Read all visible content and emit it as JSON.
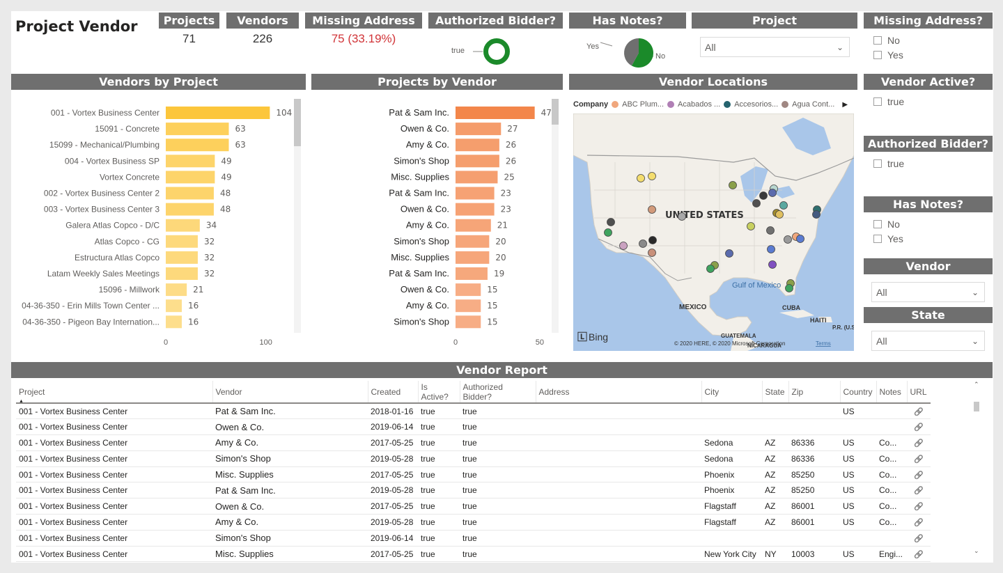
{
  "title": "Project Vendor",
  "kpis": {
    "projects": {
      "label": "Projects",
      "value": "71"
    },
    "vendors": {
      "label": "Vendors",
      "value": "226"
    },
    "missing": {
      "label": "Missing Address",
      "value": "75 (33.19%)"
    },
    "authorized": {
      "label": "Authorized Bidder?",
      "legend": "true"
    },
    "notes": {
      "label": "Has Notes?",
      "yes": "Yes",
      "no": "No",
      "yes_fraction": 0.42
    }
  },
  "filters": {
    "project": {
      "label": "Project",
      "value": "All"
    },
    "missing_address": {
      "label": "Missing Address?",
      "options": [
        "No",
        "Yes"
      ]
    },
    "vendor_active": {
      "label": "Vendor Active?",
      "options": [
        "true"
      ]
    },
    "authorized_bidder": {
      "label": "Authorized Bidder?",
      "options": [
        "true"
      ]
    },
    "has_notes": {
      "label": "Has Notes?",
      "options": [
        "No",
        "Yes"
      ]
    },
    "vendor": {
      "label": "Vendor",
      "value": "All"
    },
    "state": {
      "label": "State",
      "value": "All"
    }
  },
  "colors": {
    "header": "#6f6f6f",
    "bar_projects": "#fcc63b",
    "bar_vendors": "#f3864a",
    "accent_green": "#1b8a2a"
  },
  "chart_data": [
    {
      "type": "bar",
      "title": "Vendors by Project",
      "orientation": "horizontal",
      "categories": [
        "001 - Vortex Business Center",
        "15091 - Concrete",
        "15099 - Mechanical/Plumbing",
        "004 - Vortex Business SP",
        "Vortex Concrete",
        "002 - Vortex Business Center 2",
        "003 - Vortex Business Center 3",
        "Galera Atlas Copco - D/C",
        "Atlas Copco - CG",
        "Estructura Atlas Copco",
        "Latam Weekly Sales Meetings",
        "15096 - Millwork",
        "04-36-350 - Erin Mills Town Center ...",
        "04-36-350 - Pigeon Bay Internation..."
      ],
      "values": [
        104,
        63,
        63,
        49,
        49,
        48,
        48,
        34,
        32,
        32,
        32,
        21,
        16,
        16
      ],
      "xlim": [
        0,
        110
      ],
      "xticks": [
        "0",
        "100"
      ]
    },
    {
      "type": "bar",
      "title": "Projects by Vendor",
      "orientation": "horizontal",
      "categories": [
        "Pat & Sam Inc.",
        "Owen & Co.",
        "Amy & Co.",
        "Simon's Shop",
        "Misc. Supplies",
        "Pat & Sam Inc.",
        "Owen & Co.",
        "Amy & Co.",
        "Simon's Shop",
        "Misc. Supplies",
        "Pat & Sam Inc.",
        "Owen & Co.",
        "Amy & Co.",
        "Simon's Shop"
      ],
      "values": [
        47,
        27,
        26,
        26,
        25,
        23,
        23,
        21,
        20,
        20,
        19,
        15,
        15,
        15
      ],
      "xlim": [
        0,
        55
      ],
      "xticks": [
        "0",
        "50"
      ]
    }
  ],
  "map": {
    "title": "Vendor Locations",
    "legend_title": "Company",
    "legend_items": [
      {
        "label": "ABC Plum...",
        "color": "#f0a77d"
      },
      {
        "label": "Acabados ...",
        "color": "#b07fb5"
      },
      {
        "label": "Accesorios...",
        "color": "#25636e"
      },
      {
        "label": "Agua Cont...",
        "color": "#a08782"
      }
    ],
    "labels": {
      "country": "UNITED STATES",
      "gulf": "Gulf of Mexico",
      "mexico": "MEXICO",
      "cuba": "CUBA",
      "haiti": "HAITI",
      "pr": "P.R. (U.S.)",
      "guatemala": "GUATEMALA",
      "nicaragua": "NICARAGUA"
    },
    "provider": "Bing",
    "copyright": "© 2020 HERE, © 2020 Microsoft Corporation",
    "terms": "Terms"
  },
  "report": {
    "title": "Vendor Report",
    "columns": [
      "Project",
      "Vendor",
      "Created",
      "Is Active?",
      "Authorized Bidder?",
      "Address",
      "City",
      "State",
      "Zip",
      "Country",
      "Notes",
      "URL"
    ],
    "rows": [
      [
        "001 - Vortex Business Center",
        "Pat & Sam Inc.",
        "2018-01-16",
        "true",
        "true",
        "",
        "",
        "",
        "",
        "US",
        "",
        "link"
      ],
      [
        "001 - Vortex Business Center",
        "Owen & Co.",
        "2019-06-14",
        "true",
        "true",
        "",
        "",
        "",
        "",
        "",
        "",
        "link"
      ],
      [
        "001 - Vortex Business Center",
        "Amy & Co.",
        "2017-05-25",
        "true",
        "true",
        "",
        "Sedona",
        "AZ",
        "86336",
        "US",
        "Co...",
        "link"
      ],
      [
        "001 - Vortex Business Center",
        "Simon's Shop",
        "2019-05-28",
        "true",
        "true",
        "",
        "Sedona",
        "AZ",
        "86336",
        "US",
        "Co...",
        "link"
      ],
      [
        "001 - Vortex Business Center",
        "Misc. Supplies",
        "2017-05-25",
        "true",
        "true",
        "",
        "Phoenix",
        "AZ",
        "85250",
        "US",
        "Co...",
        "link"
      ],
      [
        "001 - Vortex Business Center",
        "Pat & Sam Inc.",
        "2019-05-28",
        "true",
        "true",
        "",
        "Phoenix",
        "AZ",
        "85250",
        "US",
        "Co...",
        "link"
      ],
      [
        "001 - Vortex Business Center",
        "Owen & Co.",
        "2017-05-25",
        "true",
        "true",
        "",
        "Flagstaff",
        "AZ",
        "86001",
        "US",
        "Co...",
        "link"
      ],
      [
        "001 - Vortex Business Center",
        "Amy & Co.",
        "2019-05-28",
        "true",
        "true",
        "",
        "Flagstaff",
        "AZ",
        "86001",
        "US",
        "Co...",
        "link"
      ],
      [
        "001 - Vortex Business Center",
        "Simon's Shop",
        "2019-06-14",
        "true",
        "true",
        "",
        "",
        "",
        "",
        "",
        "",
        "link"
      ],
      [
        "001 - Vortex Business Center",
        "Misc. Supplies",
        "2017-05-25",
        "true",
        "true",
        "",
        "New York City",
        "NY",
        "10003",
        "US",
        "Engi...",
        "link"
      ]
    ]
  }
}
